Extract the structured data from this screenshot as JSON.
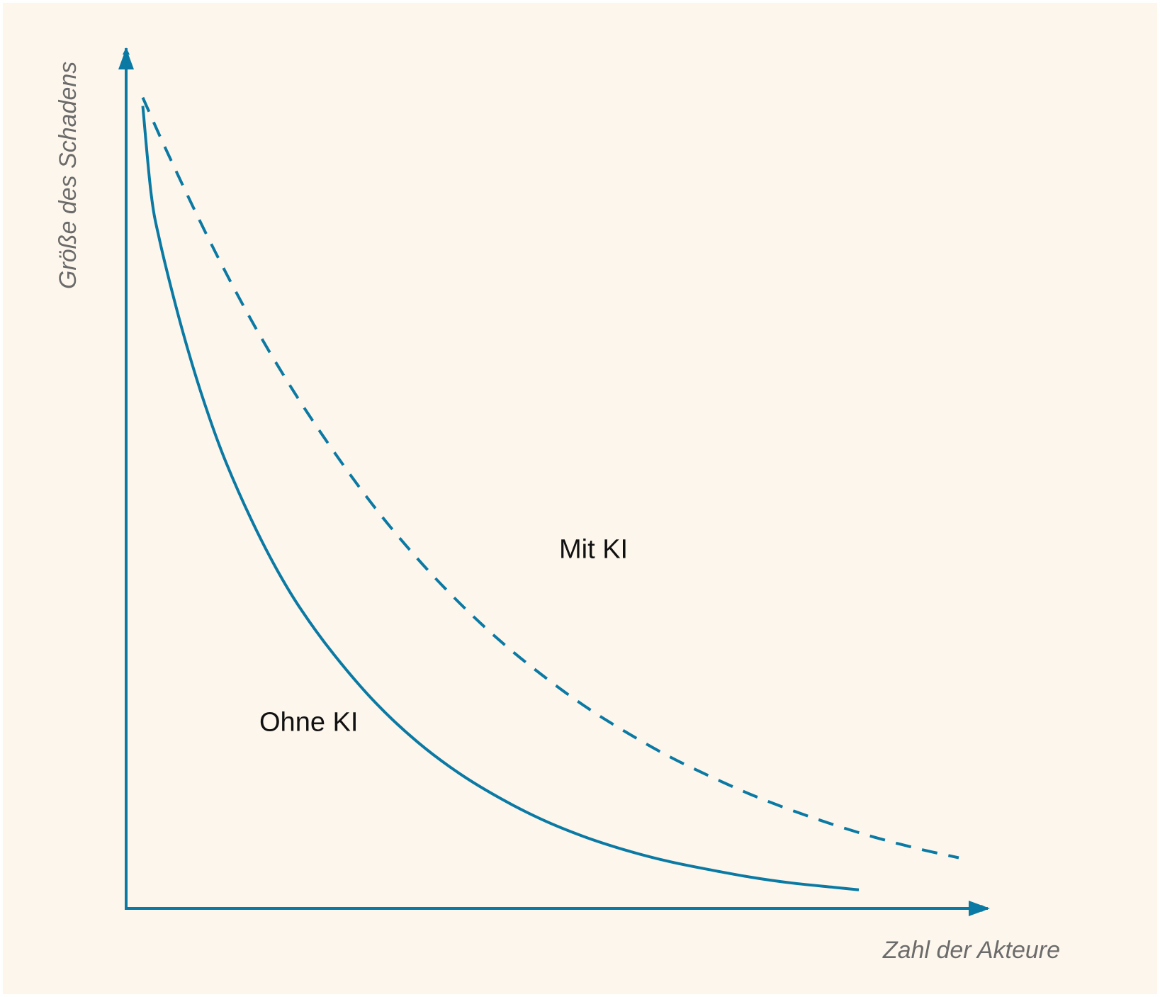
{
  "colors": {
    "background": "#fdf6ec",
    "line": "#0a79a3",
    "axis_label": "#6b6b6b",
    "series_label": "#111111"
  },
  "chart_data": {
    "type": "line",
    "title": "",
    "xlabel": "Zahl der Akteure",
    "ylabel": "Größe des Schadens",
    "xlim": [
      0,
      100
    ],
    "ylim": [
      0,
      100
    ],
    "grid": false,
    "ticks": false,
    "series": [
      {
        "name": "Ohne KI",
        "style": "solid",
        "x": [
          2,
          3,
          4,
          6,
          8,
          10,
          12,
          15,
          18,
          21,
          25,
          30,
          35,
          40,
          45,
          50,
          55,
          60,
          65,
          70,
          75,
          80,
          85,
          88
        ],
        "y": [
          95,
          84.6,
          79.2,
          71.2,
          64.2,
          58.1,
          52.8,
          46.1,
          40.3,
          35.4,
          30.0,
          24.3,
          19.7,
          16.0,
          13.0,
          10.5,
          8.5,
          6.9,
          5.6,
          4.6,
          3.7,
          3.0,
          2.5,
          2.2
        ]
      },
      {
        "name": "Mit KI",
        "style": "dashed",
        "x": [
          2,
          5,
          10,
          15,
          20,
          25,
          30,
          35,
          40,
          45,
          50,
          55,
          60,
          65,
          70,
          75,
          80,
          85,
          90,
          95,
          100
        ],
        "y": [
          96,
          89.4,
          79.1,
          69.7,
          61.4,
          54.0,
          47.3,
          41.4,
          36.2,
          31.6,
          27.6,
          24.0,
          20.9,
          18.1,
          15.7,
          13.5,
          11.6,
          9.9,
          8.4,
          7.1,
          6.0
        ]
      }
    ],
    "annotations": [
      {
        "text": "Ohne KI",
        "series": "Ohne KI",
        "x": 16,
        "y": 21
      },
      {
        "text": "Mit KI",
        "series": "Mit KI",
        "x": 52,
        "y": 41.5
      }
    ]
  }
}
